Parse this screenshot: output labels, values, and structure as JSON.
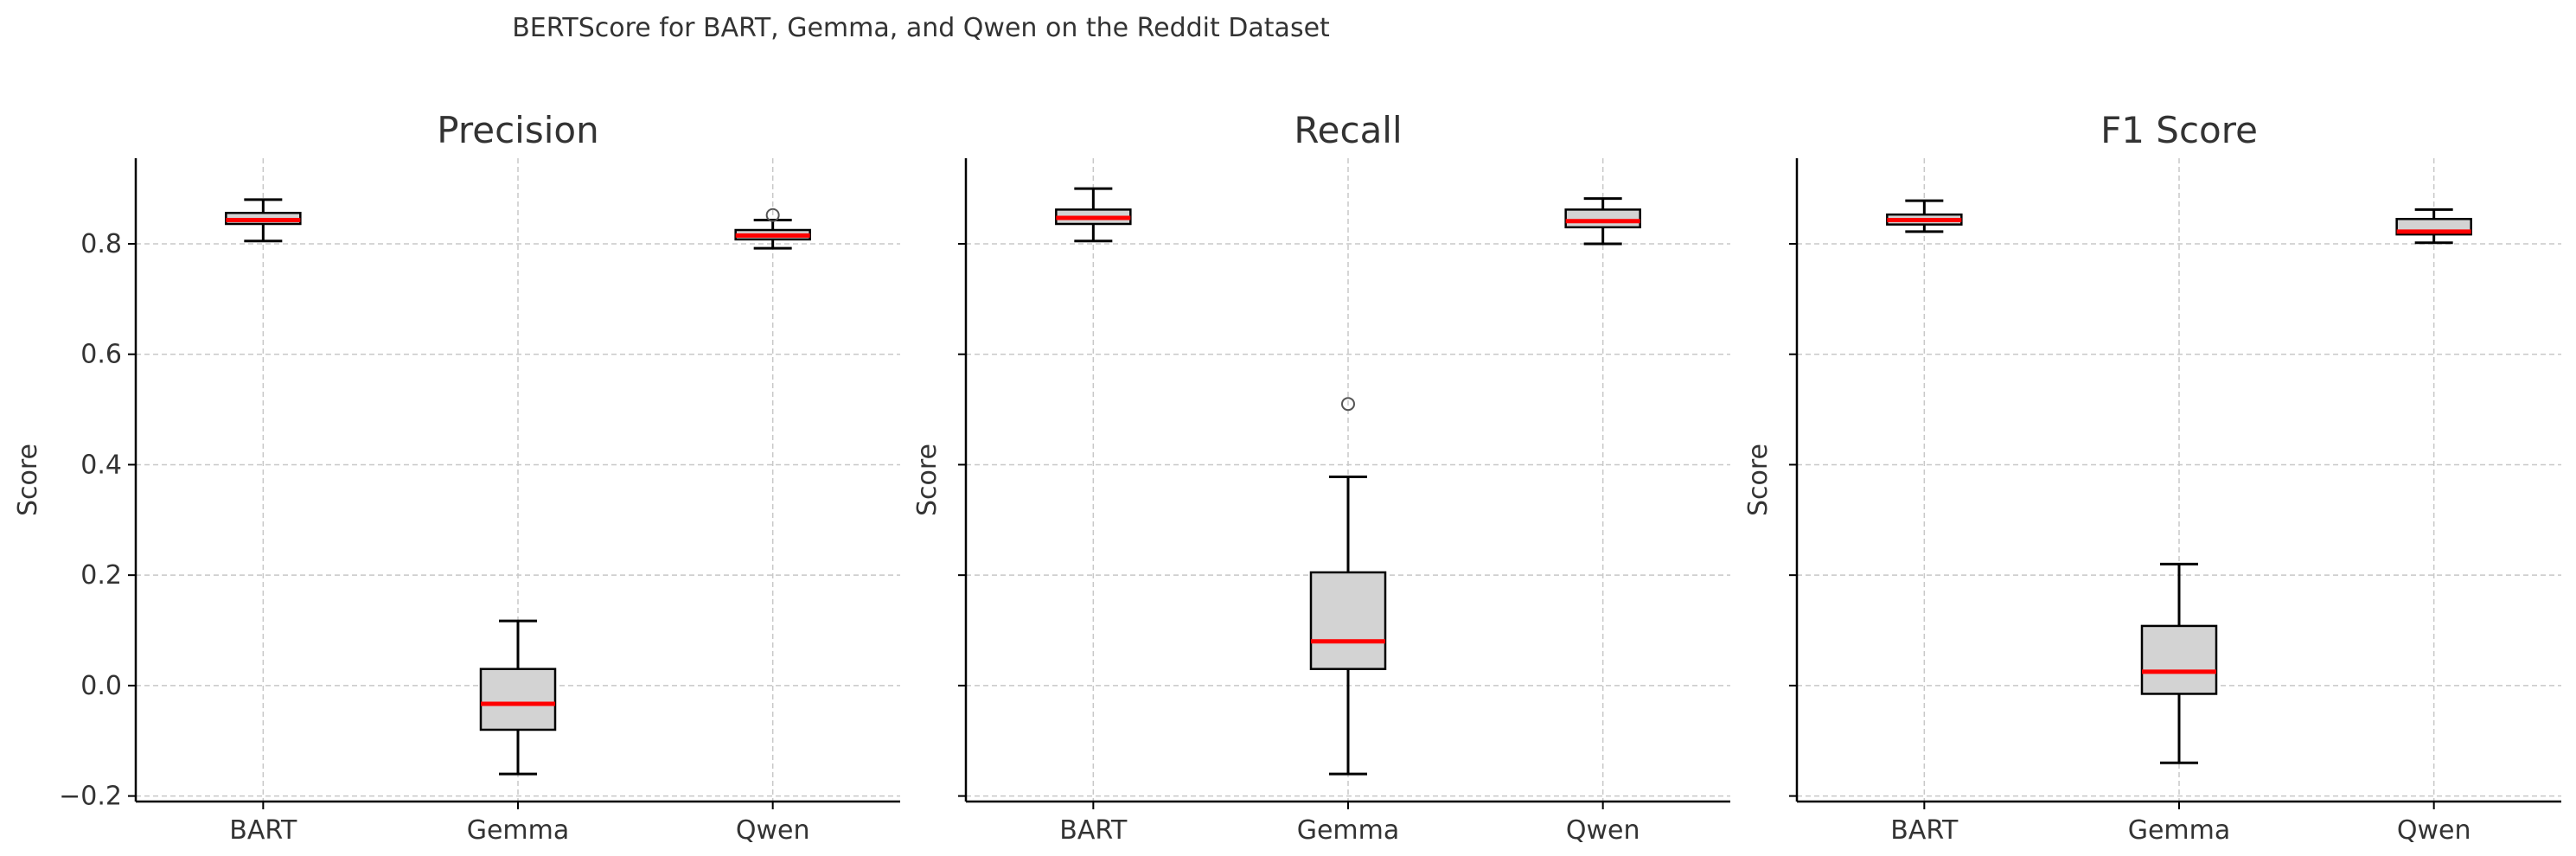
{
  "suptitle": "BERTScore for BART, Gemma, and Qwen on the Reddit Dataset",
  "colors": {
    "box_fill": "#d3d3d3",
    "median": "#ff0000",
    "grid": "#c8c8c8",
    "axis": "#000000",
    "text": "#333333"
  },
  "chart_data": [
    {
      "type": "box",
      "title": "Precision",
      "ylabel": "Score",
      "categories": [
        "BART",
        "Gemma",
        "Qwen"
      ],
      "ylim": [
        -0.21,
        0.955
      ],
      "yticks": [
        -0.2,
        0.0,
        0.2,
        0.4,
        0.6,
        0.8
      ],
      "ytick_labels": [
        "−0.2",
        "0.0",
        "0.2",
        "0.4",
        "0.6",
        "0.8"
      ],
      "show_ytick_labels": true,
      "grid": true,
      "boxes": [
        {
          "category": "BART",
          "whislo": 0.805,
          "q1": 0.836,
          "med": 0.843,
          "q3": 0.856,
          "whishi": 0.88,
          "fliers": []
        },
        {
          "category": "Gemma",
          "whislo": -0.16,
          "q1": -0.08,
          "med": -0.033,
          "q3": 0.03,
          "whishi": 0.117,
          "fliers": []
        },
        {
          "category": "Qwen",
          "whislo": 0.792,
          "q1": 0.808,
          "med": 0.815,
          "q3": 0.825,
          "whishi": 0.843,
          "fliers": [
            0.852
          ]
        }
      ]
    },
    {
      "type": "box",
      "title": "Recall",
      "ylabel": "Score",
      "categories": [
        "BART",
        "Gemma",
        "Qwen"
      ],
      "ylim": [
        -0.21,
        0.955
      ],
      "yticks": [
        -0.2,
        0.0,
        0.2,
        0.4,
        0.6,
        0.8
      ],
      "ytick_labels": [
        "−0.2",
        "0.0",
        "0.2",
        "0.4",
        "0.6",
        "0.8"
      ],
      "show_ytick_labels": false,
      "grid": true,
      "boxes": [
        {
          "category": "BART",
          "whislo": 0.805,
          "q1": 0.836,
          "med": 0.847,
          "q3": 0.862,
          "whishi": 0.9,
          "fliers": []
        },
        {
          "category": "Gemma",
          "whislo": -0.16,
          "q1": 0.03,
          "med": 0.08,
          "q3": 0.205,
          "whishi": 0.378,
          "fliers": [
            0.51
          ]
        },
        {
          "category": "Qwen",
          "whislo": 0.8,
          "q1": 0.83,
          "med": 0.841,
          "q3": 0.862,
          "whishi": 0.882,
          "fliers": []
        }
      ]
    },
    {
      "type": "box",
      "title": "F1 Score",
      "ylabel": "Score",
      "categories": [
        "BART",
        "Gemma",
        "Qwen"
      ],
      "ylim": [
        -0.21,
        0.955
      ],
      "yticks": [
        -0.2,
        0.0,
        0.2,
        0.4,
        0.6,
        0.8
      ],
      "ytick_labels": [
        "−0.2",
        "0.0",
        "0.2",
        "0.4",
        "0.6",
        "0.8"
      ],
      "show_ytick_labels": false,
      "grid": true,
      "boxes": [
        {
          "category": "BART",
          "whislo": 0.822,
          "q1": 0.835,
          "med": 0.843,
          "q3": 0.853,
          "whishi": 0.878,
          "fliers": []
        },
        {
          "category": "Gemma",
          "whislo": -0.14,
          "q1": -0.015,
          "med": 0.025,
          "q3": 0.108,
          "whishi": 0.22,
          "fliers": []
        },
        {
          "category": "Qwen",
          "whislo": 0.802,
          "q1": 0.817,
          "med": 0.822,
          "q3": 0.845,
          "whishi": 0.862,
          "fliers": []
        }
      ]
    }
  ]
}
